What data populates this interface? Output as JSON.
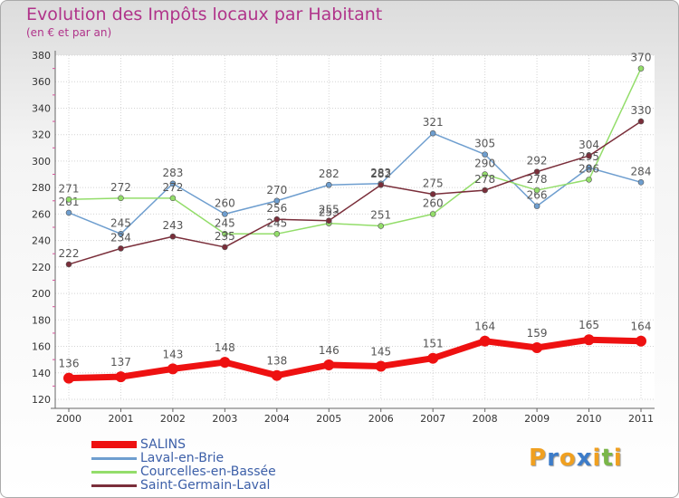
{
  "header": {
    "title": "Evolution des Impôts locaux par Habitant",
    "subtitle": "(en € et par an)"
  },
  "logo": {
    "text": "Proxiti",
    "letters": [
      "P",
      "r",
      "o",
      "x",
      "i",
      "t",
      "i"
    ],
    "colors": [
      "#f0a020",
      "#3d7cc9",
      "#f0a020",
      "#3d7cc9",
      "#f0a020",
      "#7ab648",
      "#f0a020"
    ]
  },
  "chart_data": {
    "type": "line",
    "title": "Evolution des Impôts locaux par Habitant",
    "subtitle": "(en € et par an)",
    "xlabel": "",
    "ylabel": "",
    "x": [
      2000,
      2001,
      2002,
      2003,
      2004,
      2005,
      2006,
      2007,
      2008,
      2009,
      2010,
      2011
    ],
    "ylim": [
      120,
      380
    ],
    "yticks": [
      120,
      140,
      160,
      180,
      200,
      220,
      240,
      260,
      280,
      300,
      320,
      340,
      360,
      380
    ],
    "grid": true,
    "legend": "bottom-left",
    "series": [
      {
        "name": "Laval-en-Brie",
        "color": "#6e9ecf",
        "values": [
          261,
          245,
          283,
          260,
          270,
          282,
          283,
          321,
          305,
          266,
          295,
          284
        ]
      },
      {
        "name": "Courcelles-en-Bassée",
        "color": "#93dd6a",
        "values": [
          271,
          272,
          272,
          245,
          245,
          253,
          251,
          260,
          290,
          278,
          286,
          370
        ]
      },
      {
        "name": "Saint-Germain-Laval",
        "color": "#7a2e3a",
        "values": [
          222,
          234,
          243,
          235,
          256,
          255,
          282,
          275,
          278,
          292,
          304,
          330
        ]
      },
      {
        "name": "SALINS",
        "color": "#ee1111",
        "values": [
          136,
          137,
          143,
          148,
          138,
          146,
          145,
          151,
          164,
          159,
          165,
          164
        ]
      }
    ]
  }
}
